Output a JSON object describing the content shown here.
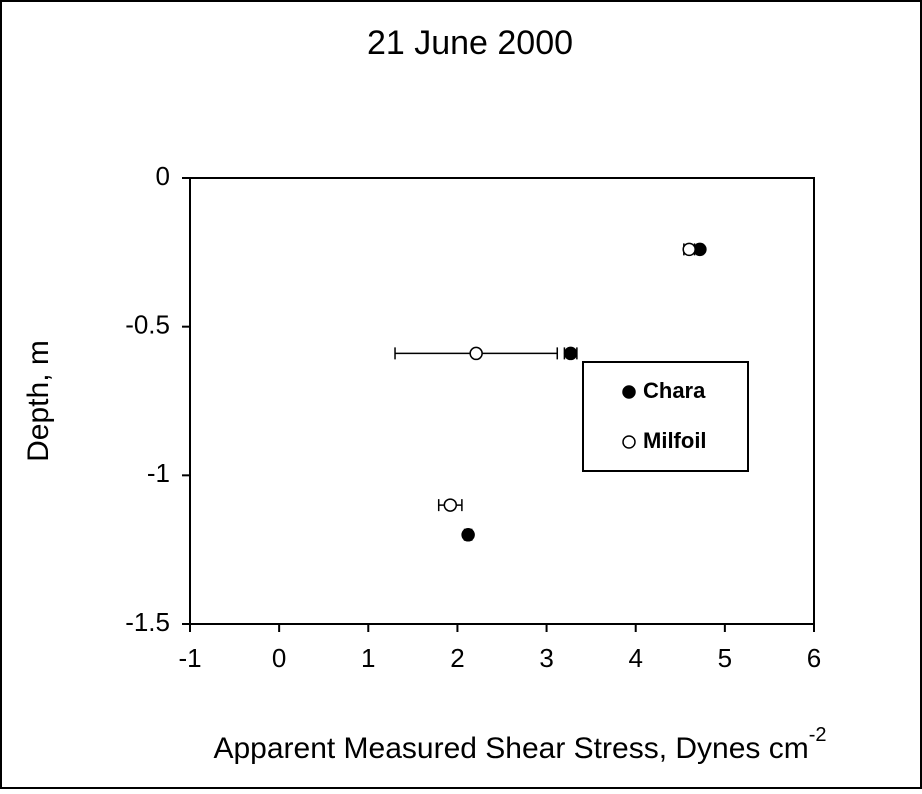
{
  "chart_data": {
    "type": "scatter",
    "title": "21 June 2000",
    "x_label": "Apparent Measured Shear Stress, Dynes cm",
    "x_label_superscript": "-2",
    "y_label": "Depth, m",
    "xlim": [
      -1,
      6
    ],
    "xticks": [
      -1,
      0,
      1,
      2,
      3,
      4,
      5,
      6
    ],
    "ylim": [
      -1.5,
      0
    ],
    "yticks": [
      0,
      -0.5,
      -1,
      -1.5
    ],
    "legend": "center right",
    "series": [
      {
        "name": "Chara",
        "color": "#000000",
        "marker": "filled",
        "x": [
          4.72,
          3.27,
          2.12
        ],
        "values": [
          -0.24,
          -0.59,
          -1.2
        ],
        "xerr": [
          0.03,
          0.07,
          0.04
        ]
      },
      {
        "name": "Milfoil",
        "color": "#000000",
        "marker": "open",
        "x": [
          4.6,
          2.21,
          1.92
        ],
        "values": [
          -0.24,
          -0.59,
          -1.1
        ],
        "xerr": [
          0.06,
          0.91,
          0.13
        ]
      }
    ]
  }
}
